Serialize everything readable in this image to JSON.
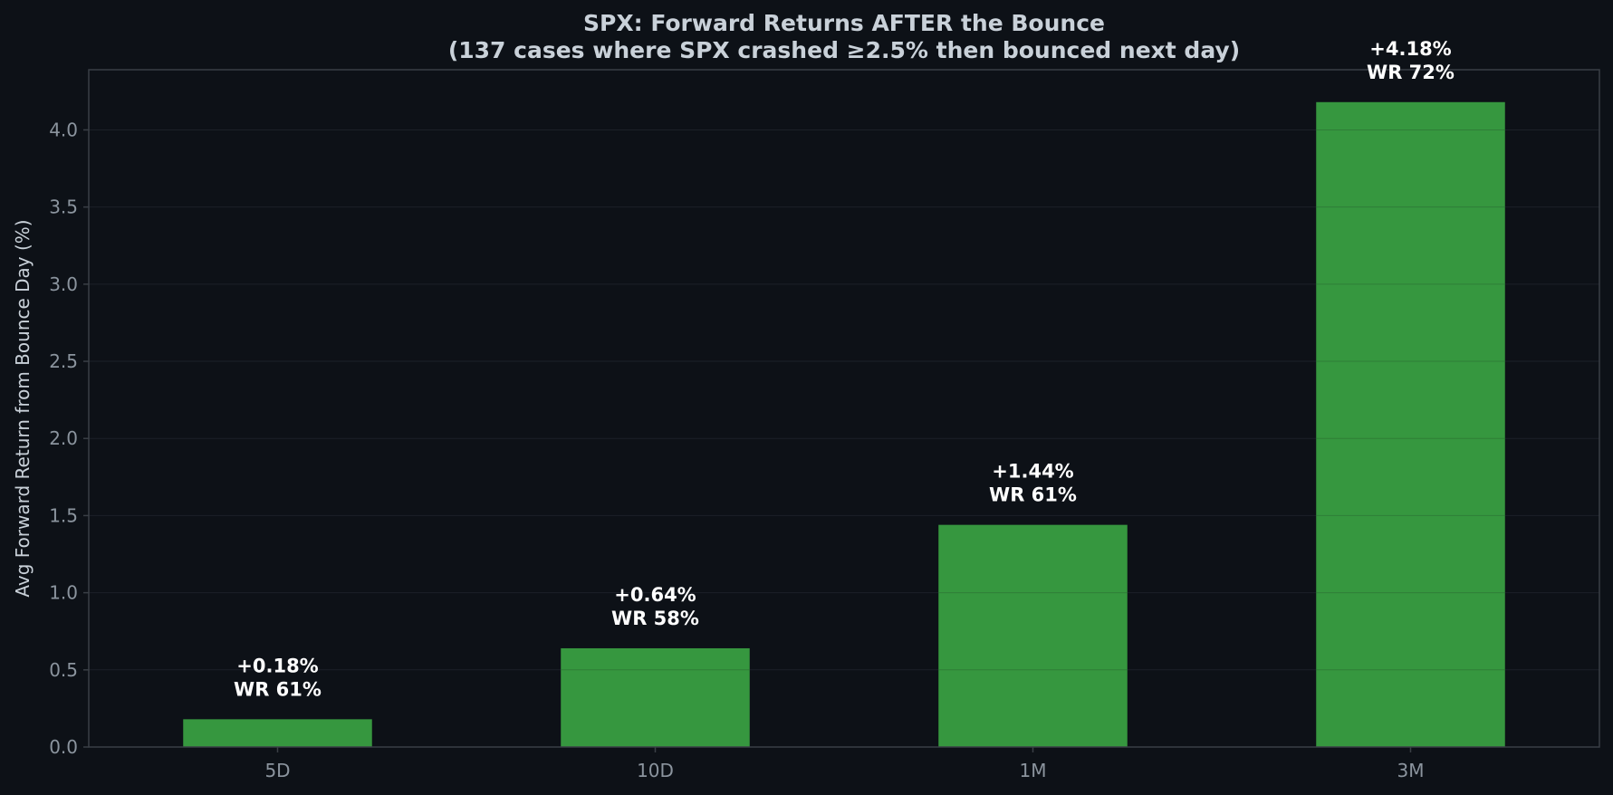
{
  "chart_data": {
    "type": "bar",
    "title_line1": "SPX: Forward Returns AFTER the Bounce",
    "title_line2": "(137 cases where SPX crashed ≥2.5% then bounced next day)",
    "xlabel": "",
    "ylabel": "Avg Forward Return from Bounce Day (%)",
    "categories": [
      "5D",
      "10D",
      "1M",
      "3M"
    ],
    "values": [
      0.18,
      0.64,
      1.44,
      4.18
    ],
    "value_labels": [
      "+0.18%",
      "+0.64%",
      "+1.44%",
      "+4.18%"
    ],
    "win_rate_labels": [
      "WR 61%",
      "WR 58%",
      "WR 61%",
      "WR 72%"
    ],
    "ylim": [
      0,
      4.39
    ],
    "yticks": [
      0.0,
      0.5,
      1.0,
      1.5,
      2.0,
      2.5,
      3.0,
      3.5,
      4.0
    ],
    "ytick_labels": [
      "0.0",
      "0.5",
      "1.0",
      "1.5",
      "2.0",
      "2.5",
      "3.0",
      "3.5",
      "4.0"
    ],
    "grid": true,
    "colors": {
      "background": "#0d1117",
      "plot_background": "#0d1117",
      "bar": "#36973f",
      "grid": "#1c2128",
      "axis": "#3a3f46",
      "tick_text": "#8b949e",
      "title": "#c9d1d9",
      "label_text": "#ffffff"
    }
  }
}
